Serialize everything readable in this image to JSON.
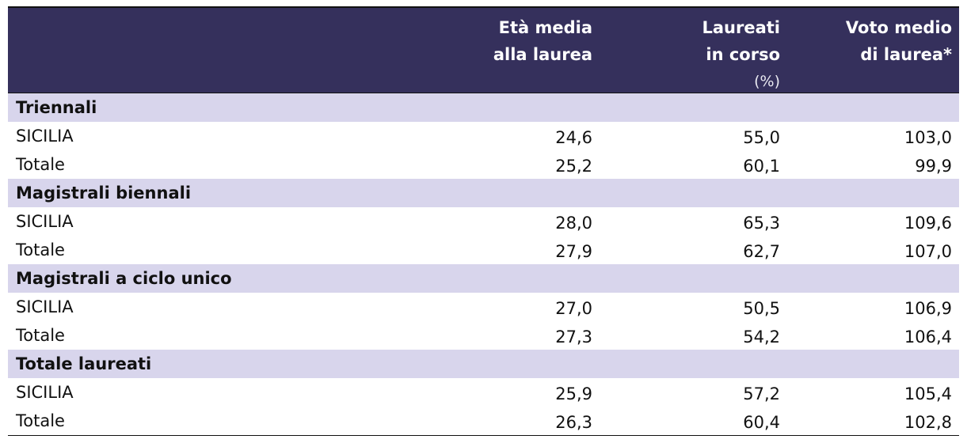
{
  "table": {
    "columns": [
      [
        "Età media",
        "alla laurea"
      ],
      [
        "Laureati",
        "in corso",
        "(%)"
      ],
      [
        "Voto medio",
        "di laurea*"
      ]
    ],
    "sections": [
      {
        "title": "Triennali",
        "rows": [
          [
            "SICILIA",
            "24,6",
            "55,0",
            "103,0"
          ],
          [
            "Totale",
            "25,2",
            "60,1",
            "99,9"
          ]
        ]
      },
      {
        "title": "Magistrali biennali",
        "rows": [
          [
            "SICILIA",
            "28,0",
            "65,3",
            "109,6"
          ],
          [
            "Totale",
            "27,9",
            "62,7",
            "107,0"
          ]
        ]
      },
      {
        "title": "Magistrali a ciclo unico",
        "rows": [
          [
            "SICILIA",
            "27,0",
            "50,5",
            "106,9"
          ],
          [
            "Totale",
            "27,3",
            "54,2",
            "106,4"
          ]
        ]
      },
      {
        "title": "Totale laureati",
        "rows": [
          [
            "SICILIA",
            "25,9",
            "57,2",
            "105,4"
          ],
          [
            "Totale",
            "26,3",
            "60,4",
            "102,8"
          ]
        ]
      }
    ]
  }
}
